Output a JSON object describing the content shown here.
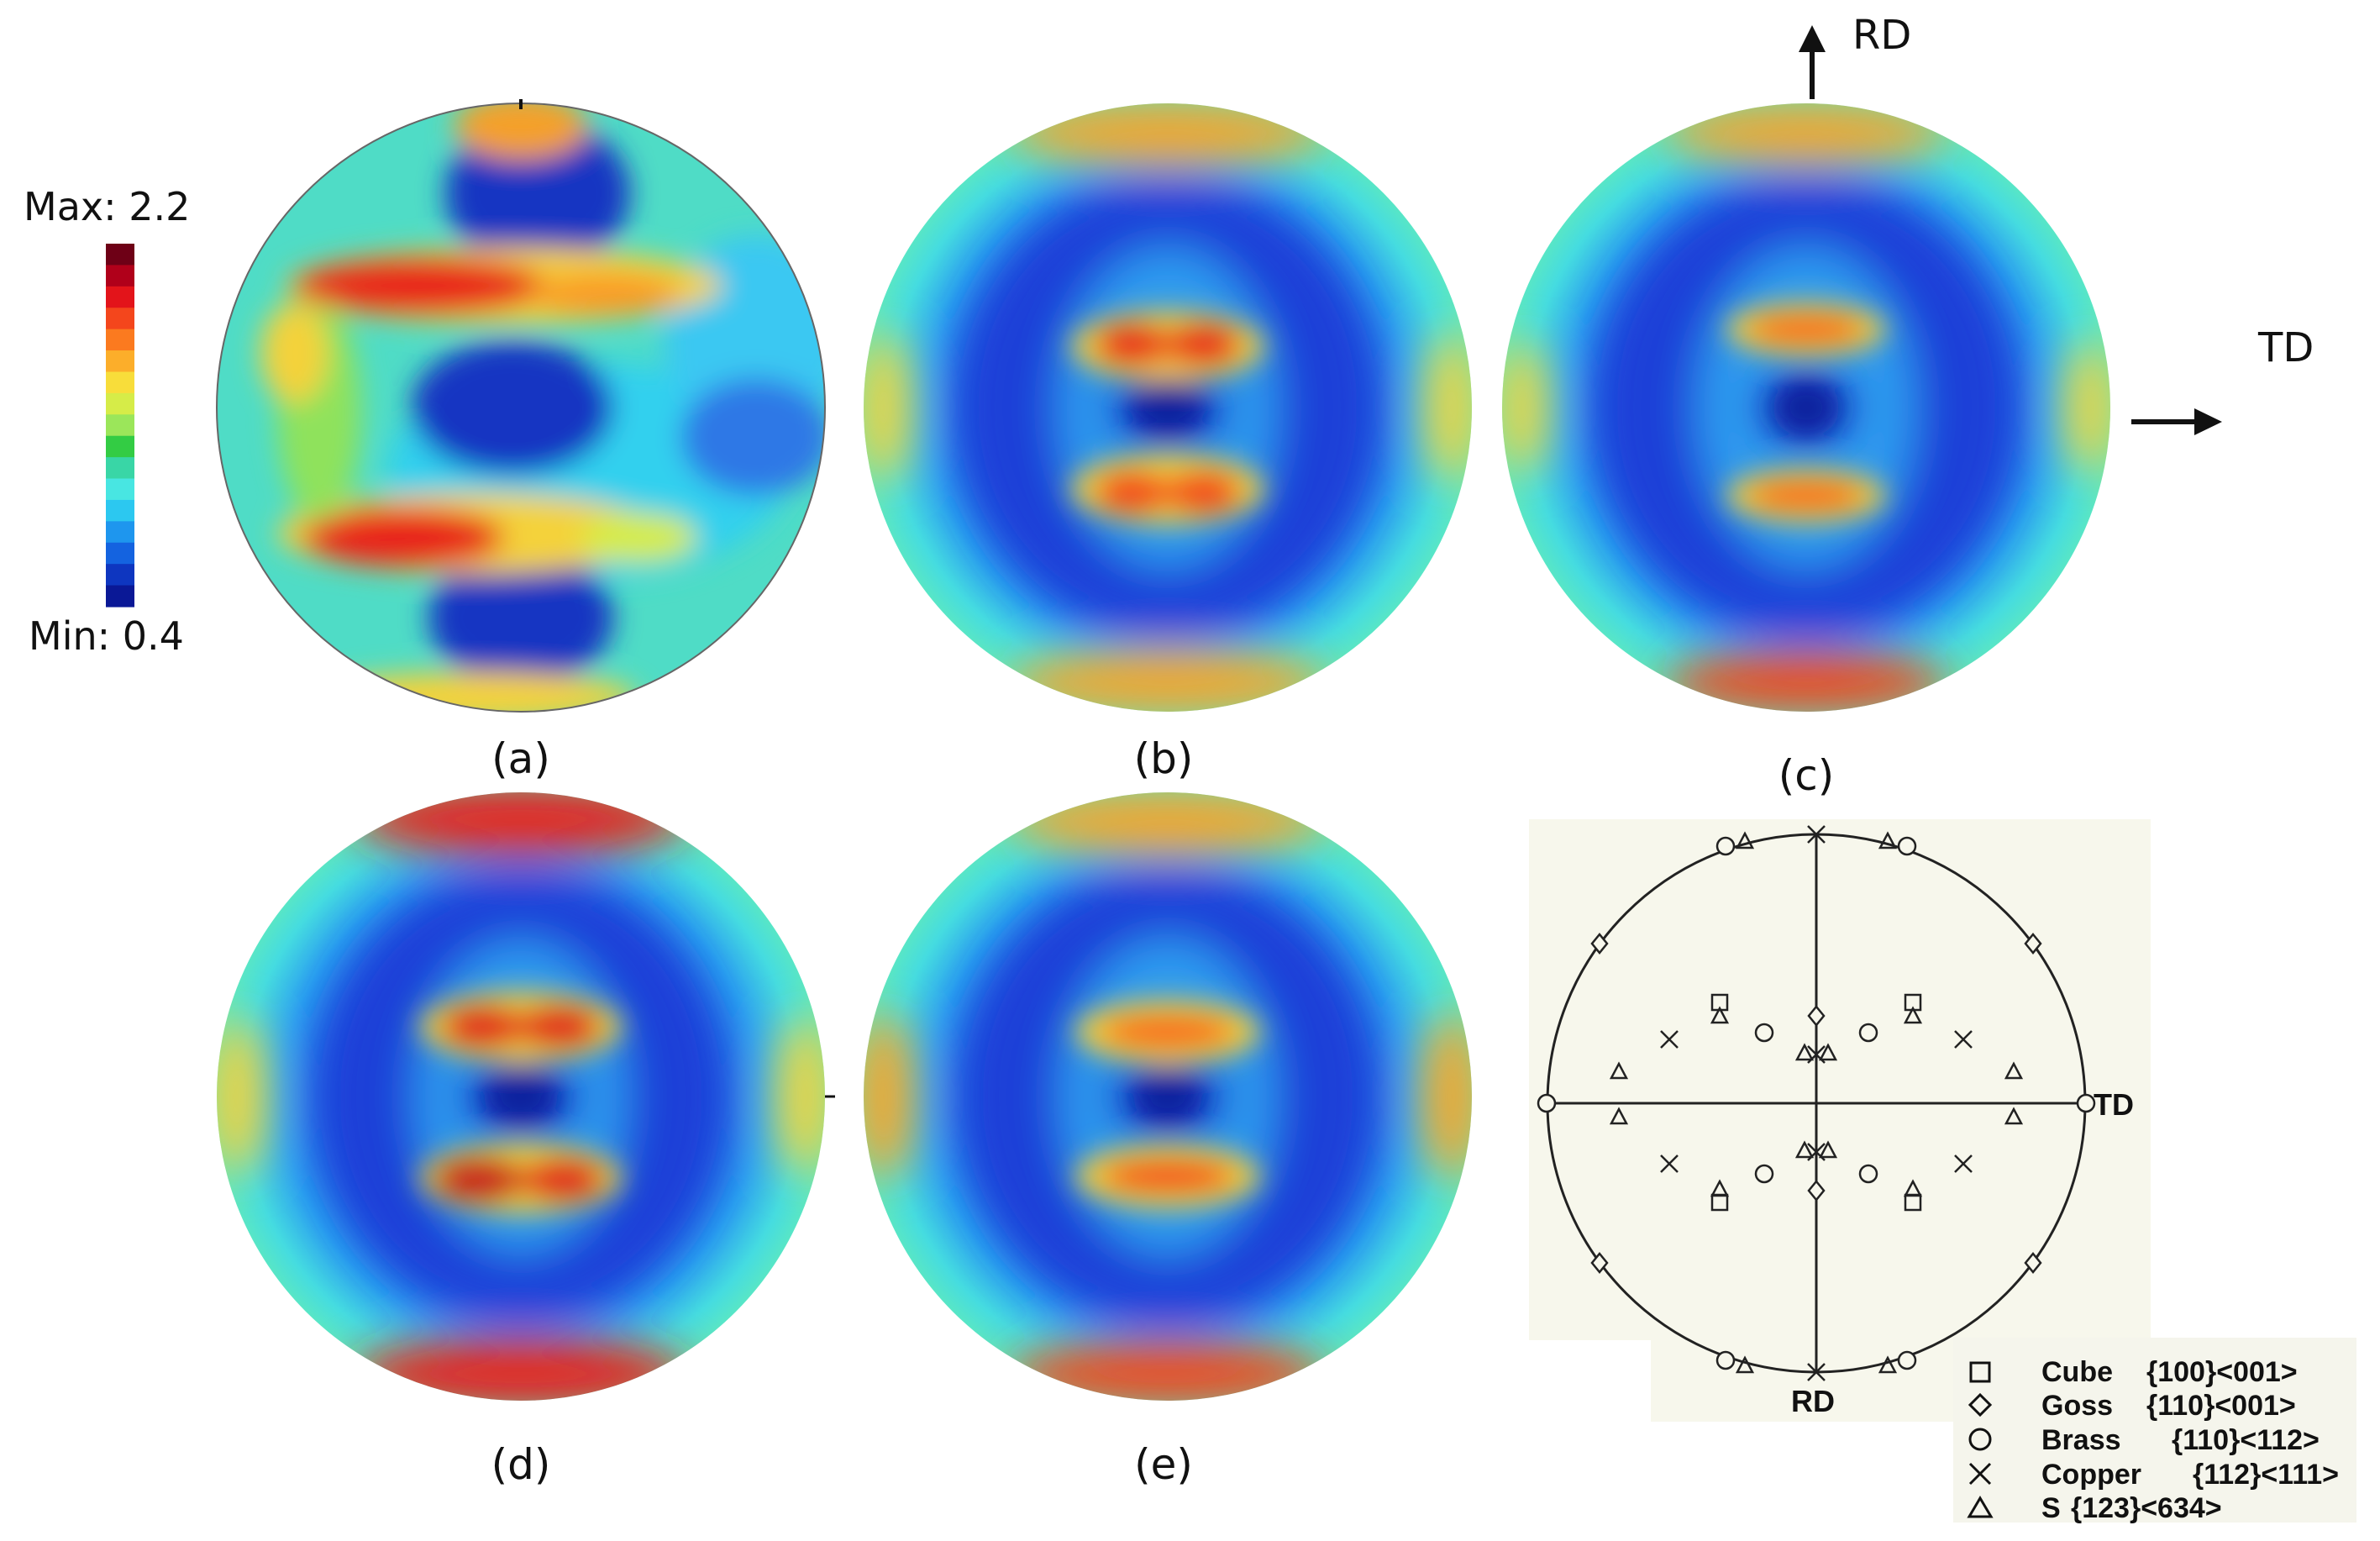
{
  "colorbar": {
    "max_label": "Max: 2.2",
    "min_label": "Min: 0.4",
    "colors": [
      "#6e0016",
      "#b0001a",
      "#e3141a",
      "#f4461c",
      "#fb7a1f",
      "#fcae2a",
      "#f8dd3a",
      "#d6ec48",
      "#9be65a",
      "#33cc44",
      "#39d6a6",
      "#48e6e2",
      "#2cc8f0",
      "#1e96ee",
      "#1463e0",
      "#0e36c0",
      "#0a1896"
    ]
  },
  "panels": [
    {
      "label": "(a)"
    },
    {
      "label": "(b)"
    },
    {
      "label": "(c)"
    },
    {
      "label": "(d)"
    },
    {
      "label": "(e)"
    }
  ],
  "directions": {
    "rd": "RD",
    "td": "TD"
  },
  "standard": {
    "td_label": "TD",
    "rd_label": "RD",
    "legend": [
      {
        "symbol": "square",
        "name": "Cube",
        "index": "{100}<001>"
      },
      {
        "symbol": "diamond",
        "name": "Goss",
        "index": "{110}<001>"
      },
      {
        "symbol": "circle",
        "name": "Brass",
        "index": "{110}<112>"
      },
      {
        "symbol": "cross",
        "name": "Copper",
        "index": "{112}<111>"
      },
      {
        "symbol": "triangle",
        "name": "S",
        "index": "{123}<634>"
      }
    ]
  }
}
